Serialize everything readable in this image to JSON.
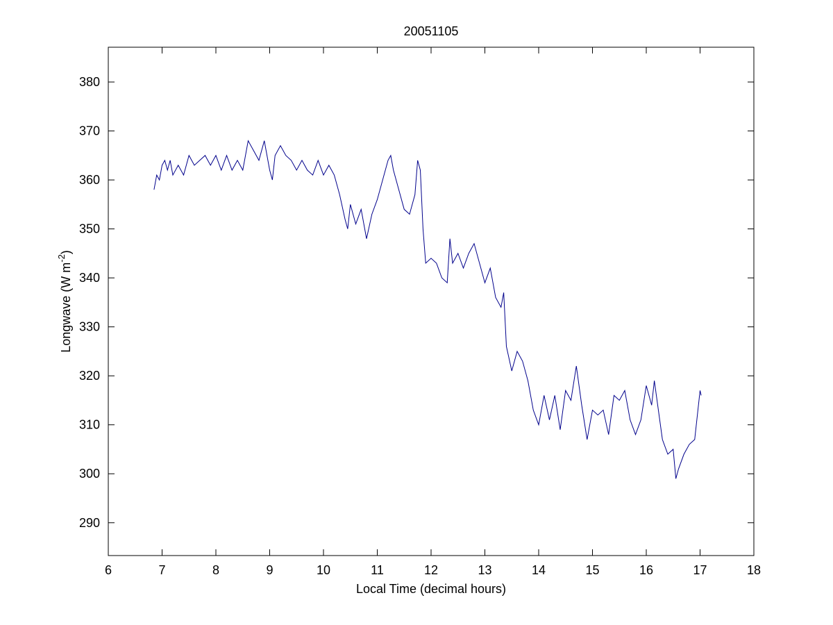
{
  "chart_data": {
    "type": "line",
    "title": "20051105",
    "xlabel": "Local Time (decimal hours)",
    "ylabel_parts": [
      "Longwave (W m",
      "-2",
      ")"
    ],
    "xlim": [
      6,
      18
    ],
    "xticks": [
      6,
      7,
      8,
      9,
      10,
      11,
      12,
      13,
      14,
      15,
      16,
      17,
      18
    ],
    "ylim": [
      283.3,
      387.1
    ],
    "yticks": [
      290,
      300,
      310,
      320,
      330,
      340,
      350,
      360,
      370,
      380
    ],
    "grid": false,
    "series": [
      {
        "color": "#00008b",
        "x": [
          6.85,
          6.9,
          6.95,
          7.0,
          7.05,
          7.1,
          7.15,
          7.2,
          7.3,
          7.4,
          7.5,
          7.6,
          7.7,
          7.8,
          7.9,
          8.0,
          8.1,
          8.2,
          8.3,
          8.4,
          8.5,
          8.6,
          8.7,
          8.8,
          8.9,
          9.0,
          9.05,
          9.1,
          9.2,
          9.3,
          9.4,
          9.5,
          9.6,
          9.7,
          9.8,
          9.9,
          10.0,
          10.1,
          10.2,
          10.3,
          10.4,
          10.45,
          10.5,
          10.6,
          10.7,
          10.8,
          10.9,
          11.0,
          11.1,
          11.2,
          11.25,
          11.3,
          11.4,
          11.5,
          11.6,
          11.7,
          11.75,
          11.8,
          11.85,
          11.9,
          12.0,
          12.1,
          12.2,
          12.3,
          12.35,
          12.4,
          12.5,
          12.6,
          12.7,
          12.8,
          12.9,
          13.0,
          13.1,
          13.2,
          13.3,
          13.35,
          13.4,
          13.5,
          13.6,
          13.7,
          13.8,
          13.9,
          14.0,
          14.1,
          14.2,
          14.3,
          14.4,
          14.5,
          14.6,
          14.7,
          14.8,
          14.9,
          15.0,
          15.1,
          15.2,
          15.3,
          15.4,
          15.5,
          15.6,
          15.7,
          15.8,
          15.9,
          16.0,
          16.1,
          16.15,
          16.2,
          16.3,
          16.4,
          16.5,
          16.55,
          16.6,
          16.7,
          16.8,
          16.9,
          17.0,
          17.02
        ],
        "values": [
          358,
          361,
          360,
          363,
          364,
          362,
          364,
          361,
          363,
          361,
          365,
          363,
          364,
          365,
          363,
          365,
          362,
          365,
          362,
          364,
          362,
          368,
          366,
          364,
          368,
          362,
          360,
          365,
          367,
          365,
          364,
          362,
          364,
          362,
          361,
          364,
          361,
          363,
          361,
          357,
          352,
          350,
          355,
          351,
          354,
          348,
          353,
          356,
          360,
          364,
          365,
          362,
          358,
          354,
          353,
          357,
          364,
          362,
          350,
          343,
          344,
          343,
          340,
          339,
          348,
          343,
          345,
          342,
          345,
          347,
          343,
          339,
          342,
          336,
          334,
          337,
          326,
          321,
          325,
          323,
          319,
          313,
          310,
          316,
          311,
          316,
          309,
          317,
          315,
          322,
          314,
          307,
          313,
          312,
          313,
          308,
          316,
          315,
          317,
          311,
          308,
          311,
          318,
          314,
          319,
          315,
          307,
          304,
          305,
          299,
          301,
          304,
          306,
          307,
          317,
          316
        ]
      }
    ]
  }
}
